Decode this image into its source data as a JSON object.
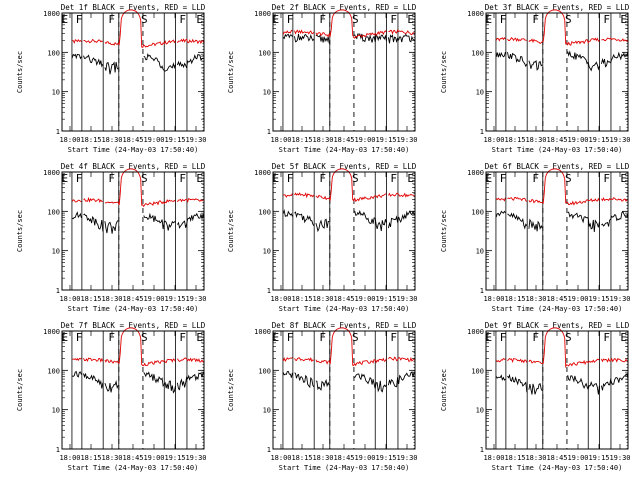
{
  "figure": {
    "ylabel": "Counts/sec",
    "xlabel": "Start Time (24-May-03 17:50:40)",
    "yticks": [
      "1",
      "10",
      "100",
      "1000"
    ],
    "colors": {
      "events": "#000000",
      "lld": "#e00000",
      "axis": "#000000"
    }
  },
  "chart_data": [
    {
      "type": "line",
      "title": "Det 1f BLACK = Events, RED = LLD",
      "xticks": [
        "18:00",
        "18:15",
        "18:30",
        "18:45",
        "19:00",
        "19:15",
        "19:30"
      ],
      "markers": [
        "E",
        "F",
        "F",
        "S",
        "F",
        "E"
      ],
      "series": [
        {
          "name": "Events",
          "base": 65,
          "flat": false
        },
        {
          "name": "LLD",
          "base": 170,
          "flare": 1200
        }
      ],
      "ylog": true,
      "ylim": [
        1,
        1000
      ]
    },
    {
      "type": "line",
      "title": "Det 2f BLACK = Events, RED = LLD",
      "xticks": [
        "18:00",
        "18:15",
        "18:30",
        "18:45",
        "19:00",
        "19:15",
        "19:30"
      ],
      "markers": [
        "E",
        "F",
        "F",
        "S",
        "F",
        "E"
      ],
      "series": [
        {
          "name": "Events",
          "base": 250,
          "flat": true
        },
        {
          "name": "LLD",
          "base": 290,
          "flare": 1200
        }
      ],
      "ylog": true,
      "ylim": [
        1,
        1000
      ]
    },
    {
      "type": "line",
      "title": "Det 3f BLACK = Events, RED = LLD",
      "xticks": [
        "18:00",
        "18:15",
        "18:30",
        "18:45",
        "19:00",
        "19:15",
        "19:30"
      ],
      "markers": [
        "E",
        "F",
        "F",
        "S",
        "F",
        "E"
      ],
      "series": [
        {
          "name": "Events",
          "base": 75,
          "flat": false
        },
        {
          "name": "LLD",
          "base": 190,
          "flare": 1200
        }
      ],
      "ylog": true,
      "ylim": [
        1,
        1000
      ]
    },
    {
      "type": "line",
      "title": "Det 4f BLACK = Events, RED = LLD",
      "xticks": [
        "18:00",
        "18:15",
        "18:30",
        "18:45",
        "19:00",
        "19:15",
        "19:30"
      ],
      "markers": [
        "E",
        "F",
        "F",
        "S",
        "F",
        "E"
      ],
      "series": [
        {
          "name": "Events",
          "base": 65,
          "flat": false
        },
        {
          "name": "LLD",
          "base": 170,
          "flare": 1200
        }
      ],
      "ylog": true,
      "ylim": [
        1,
        1000
      ]
    },
    {
      "type": "line",
      "title": "Det 5f BLACK = Events, RED = LLD",
      "xticks": [
        "18:00",
        "18:15",
        "18:30",
        "18:45",
        "19:00",
        "19:15",
        "19:30"
      ],
      "markers": [
        "E",
        "F",
        "F",
        "S",
        "F",
        "E"
      ],
      "series": [
        {
          "name": "Events",
          "base": 75,
          "flat": false
        },
        {
          "name": "LLD",
          "base": 230,
          "flare": 1200
        }
      ],
      "ylog": true,
      "ylim": [
        1,
        1000
      ]
    },
    {
      "type": "line",
      "title": "Det 6f BLACK = Events, RED = LLD",
      "xticks": [
        "18:00",
        "18:15",
        "18:30",
        "18:45",
        "19:00",
        "19:15",
        "19:30"
      ],
      "markers": [
        "E",
        "F",
        "F",
        "S",
        "F",
        "E"
      ],
      "series": [
        {
          "name": "Events",
          "base": 70,
          "flat": false
        },
        {
          "name": "LLD",
          "base": 180,
          "flare": 1200
        }
      ],
      "ylog": true,
      "ylim": [
        1,
        1000
      ]
    },
    {
      "type": "line",
      "title": "Det 7f BLACK = Events, RED = LLD",
      "xticks": [
        "18:00",
        "18:15",
        "18:30",
        "18:45",
        "19:00",
        "19:15",
        "19:30"
      ],
      "markers": [
        "E",
        "F",
        "F",
        "S",
        "F",
        "E"
      ],
      "series": [
        {
          "name": "Events",
          "base": 65,
          "flat": false
        },
        {
          "name": "LLD",
          "base": 165,
          "flare": 1200
        }
      ],
      "ylog": true,
      "ylim": [
        1,
        1000
      ]
    },
    {
      "type": "line",
      "title": "Det 8f BLACK = Events, RED = LLD",
      "xticks": [
        "18:00",
        "18:15",
        "18:30",
        "18:45",
        "19:00",
        "19:15",
        "19:30"
      ],
      "markers": [
        "E",
        "F",
        "F",
        "S",
        "F",
        "E"
      ],
      "series": [
        {
          "name": "Events",
          "base": 65,
          "flat": false
        },
        {
          "name": "LLD",
          "base": 170,
          "flare": 1200
        }
      ],
      "ylog": true,
      "ylim": [
        1,
        1000
      ]
    },
    {
      "type": "line",
      "title": "Det 9f BLACK = Events, RED = LLD",
      "xticks": [
        "18:00",
        "18:15",
        "18:30",
        "18:45",
        "19:00",
        "19:15",
        "19:30"
      ],
      "markers": [
        "E",
        "F",
        "F",
        "S",
        "F",
        "E"
      ],
      "series": [
        {
          "name": "Events",
          "base": 55,
          "flat": false
        },
        {
          "name": "LLD",
          "base": 160,
          "flare": 1200
        }
      ],
      "ylog": true,
      "ylim": [
        1,
        1000
      ]
    }
  ]
}
